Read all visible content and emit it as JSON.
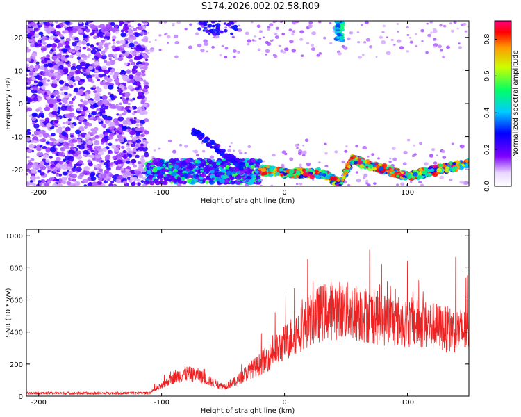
{
  "title": "S174.2026.002.02.58.R09",
  "colors": {
    "snr_line": "#ee2222",
    "colormap": [
      "#ffffff",
      "#8000ff",
      "#0000ff",
      "#00ccff",
      "#00ff66",
      "#ccff00",
      "#ff9900",
      "#ff0000",
      "#ff0080"
    ]
  },
  "chart_data": [
    {
      "type": "heatmap",
      "xlabel": "Height of straight line (km)",
      "ylabel": "Frequency (Hz)",
      "xlim": [
        -210,
        150
      ],
      "ylim": [
        -25,
        25
      ],
      "x_ticks": [
        -200,
        -100,
        0,
        100
      ],
      "y_ticks": [
        -20,
        -10,
        0,
        10,
        20
      ],
      "colorbar": {
        "label": "Normalized spectral amplitude",
        "range": [
          0,
          0.9
        ],
        "ticks": [
          0.0,
          0.2,
          0.4,
          0.6,
          0.8
        ]
      },
      "features": [
        {
          "description": "diffuse noise",
          "x_range": [
            -210,
            -112
          ],
          "freq_range": [
            -25,
            25
          ],
          "level": 0.15
        },
        {
          "description": "echo band",
          "x_range": [
            -112,
            -20
          ],
          "freq_range": [
            -24,
            -17
          ],
          "level": 0.4
        },
        {
          "description": "meteor echo trace",
          "x_range": [
            -20,
            150
          ],
          "freq_center": [
            [
              -20,
              -20
            ],
            [
              0,
              -21
            ],
            [
              30,
              -21
            ],
            [
              45,
              -24
            ],
            [
              55,
              -17
            ],
            [
              100,
              -22
            ],
            [
              150,
              -18
            ]
          ],
          "level": 0.85
        }
      ]
    },
    {
      "type": "line",
      "xlabel": "Height of straight line (km)",
      "ylabel": "SNR (10 * v/v)",
      "xlim": [
        -210,
        150
      ],
      "ylim": [
        0,
        1040
      ],
      "x_ticks": [
        -200,
        -100,
        0,
        100
      ],
      "y_ticks": [
        0,
        200,
        400,
        600,
        800,
        1000
      ],
      "series": [
        {
          "x": [
            -210,
            -160,
            -110,
            -100,
            -90,
            -80,
            -70,
            -60,
            -50,
            -40,
            -30,
            -20,
            -10,
            0,
            10,
            20,
            30,
            40,
            50,
            60,
            70,
            80,
            90,
            100,
            110,
            120,
            130,
            140,
            150
          ],
          "values": [
            20,
            18,
            20,
            60,
            120,
            140,
            130,
            90,
            60,
            90,
            150,
            200,
            260,
            330,
            400,
            470,
            520,
            540,
            530,
            520,
            500,
            480,
            470,
            460,
            450,
            440,
            420,
            410,
            400
          ]
        }
      ]
    }
  ]
}
